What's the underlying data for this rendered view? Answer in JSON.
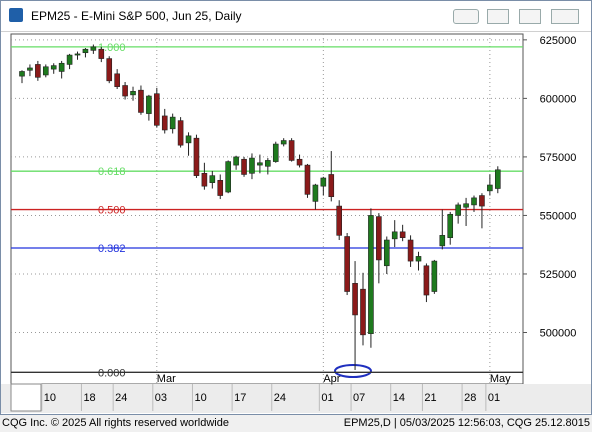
{
  "window_title": "EPM25 - E-Mini S&P 500, Jun 25, Daily",
  "footer": {
    "left": "CQG Inc. © 2025 All rights reserved worldwide",
    "right": "EPM25,D | 05/03/2025 12:56:03, CQG 25.12.8015"
  },
  "chart_data": {
    "type": "candlestick",
    "categories": [
      null,
      null,
      null,
      "10",
      null,
      null,
      null,
      null,
      "18",
      null,
      null,
      null,
      "24",
      null,
      null,
      null,
      null,
      "03",
      null,
      null,
      null,
      null,
      "10",
      null,
      null,
      null,
      null,
      "17",
      null,
      null,
      null,
      null,
      "24",
      null,
      null,
      null,
      null,
      null,
      "01",
      null,
      null,
      null,
      "07",
      null,
      null,
      null,
      null,
      "14",
      null,
      null,
      null,
      "21",
      null,
      null,
      null,
      null,
      "28",
      null,
      null,
      "01",
      null
    ],
    "month_categories": [
      null,
      null,
      null,
      null,
      null,
      null,
      null,
      null,
      null,
      null,
      null,
      null,
      null,
      null,
      null,
      null,
      null,
      "Mar",
      null,
      null,
      null,
      null,
      null,
      null,
      null,
      null,
      null,
      null,
      null,
      null,
      null,
      null,
      null,
      null,
      null,
      null,
      null,
      null,
      "Apr",
      null,
      null,
      null,
      null,
      null,
      null,
      null,
      null,
      null,
      null,
      null,
      null,
      null,
      null,
      null,
      null,
      null,
      null,
      null,
      null,
      "May",
      null
    ],
    "open": [
      609500,
      612000,
      614500,
      610000,
      612500,
      611500,
      614500,
      618500,
      619500,
      620500,
      621000,
      617000,
      610500,
      605500,
      601500,
      603500,
      593500,
      602000,
      592500,
      587000,
      590500,
      581000,
      583000,
      568000,
      564000,
      565000,
      560000,
      571500,
      574000,
      568000,
      571500,
      571000,
      573000,
      580500,
      582000,
      574000,
      571500,
      556000,
      562500,
      567500,
      554000,
      541000,
      521000,
      518500,
      499500,
      549500,
      528500,
      540000,
      543000,
      539500,
      530500,
      528500,
      517500,
      537000,
      540500,
      550000,
      553500,
      554500,
      558500,
      560500,
      561500
    ],
    "high": [
      612000,
      614500,
      616000,
      614500,
      615000,
      616000,
      619000,
      620000,
      621500,
      623000,
      622000,
      618000,
      612500,
      607000,
      605000,
      605500,
      601500,
      604500,
      595500,
      593500,
      592000,
      585500,
      584500,
      572500,
      569000,
      567500,
      573500,
      575500,
      575000,
      576500,
      576000,
      574500,
      581500,
      583000,
      583000,
      576000,
      572000,
      563500,
      566500,
      577500,
      556500,
      542500,
      530500,
      525500,
      553000,
      551000,
      541000,
      548000,
      546000,
      541500,
      534500,
      529500,
      531000,
      552500,
      551500,
      555500,
      557500,
      558500,
      559500,
      567500,
      571000
    ],
    "low": [
      606500,
      609500,
      607500,
      609000,
      610500,
      608500,
      612500,
      616500,
      617500,
      619000,
      615500,
      606500,
      604000,
      599500,
      599000,
      593000,
      590500,
      587500,
      585000,
      585000,
      579000,
      575500,
      566000,
      561000,
      561500,
      557000,
      559500,
      569500,
      566500,
      565500,
      568000,
      567500,
      572500,
      579500,
      573000,
      570500,
      557500,
      552500,
      558500,
      556000,
      539500,
      516000,
      484000,
      494500,
      493500,
      521000,
      525000,
      536500,
      539000,
      528000,
      526500,
      513000,
      516500,
      535500,
      537500,
      546500,
      545500,
      551500,
      544500,
      558500,
      559500
    ],
    "close": [
      611500,
      613000,
      609000,
      613500,
      614000,
      615000,
      618500,
      619000,
      621000,
      622000,
      617000,
      607500,
      605000,
      601000,
      603000,
      594000,
      601000,
      588500,
      586500,
      592000,
      580000,
      584000,
      567000,
      562500,
      567000,
      558500,
      573000,
      575000,
      567500,
      574500,
      572500,
      573500,
      580500,
      582000,
      573500,
      571500,
      559000,
      563000,
      566000,
      558000,
      541500,
      517500,
      507500,
      499000,
      550000,
      531000,
      539500,
      543000,
      540500,
      530500,
      532500,
      516000,
      530500,
      541500,
      550500,
      554500,
      555000,
      557500,
      554000,
      563000,
      569500
    ],
    "up_color": "#1e7a1e",
    "down_color": "#8b1a1a",
    "ylim": [
      478000,
      627500
    ],
    "yticks": [
      500000,
      525000,
      550000,
      575000,
      600000,
      625000
    ],
    "grid": true,
    "fib_levels": [
      {
        "label": "1.000",
        "value": 622000,
        "color": "#66dd66"
      },
      {
        "label": "0.618",
        "value": 568900,
        "color": "#66dd66"
      },
      {
        "label": "0.500",
        "value": 552500,
        "color": "#cc2222"
      },
      {
        "label": "0.382",
        "value": 536100,
        "color": "#2233dd"
      },
      {
        "label": "0.000",
        "value": 483000,
        "color": "#333333"
      }
    ]
  }
}
